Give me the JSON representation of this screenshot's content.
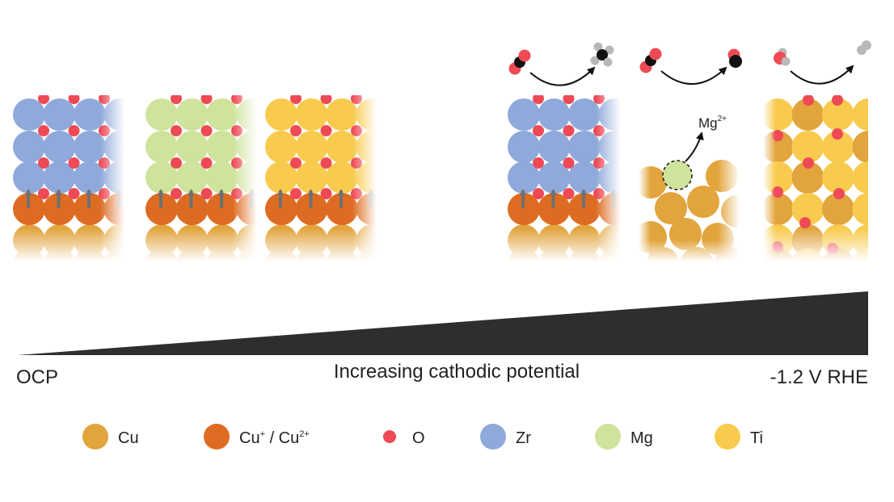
{
  "colors": {
    "cu": "#E2A43C",
    "cu_ox": "#DD6C22",
    "o": "#EE4A55",
    "zr": "#8FA9DB",
    "mg": "#CEE39B",
    "ti": "#F8CB4E",
    "arrow": "#707070",
    "wedge": "#2e2e2e",
    "carbon": "#111111",
    "hydrogen": "#b8b8b8"
  },
  "axis": {
    "left_label": "OCP",
    "center_label": "Increasing cathodic potential",
    "right_label": "-1.2 V RHE"
  },
  "mg_release": {
    "ion": "Mg",
    "charge": "2+"
  },
  "legend": [
    {
      "key": "cu",
      "label": "Cu",
      "icon": "copper-atom"
    },
    {
      "key": "cu_ox",
      "label_main": "Cu",
      "sup1": "+",
      "label_mid": " / Cu",
      "sup2": "2+",
      "icon": "oxidized-copper-atom"
    },
    {
      "key": "o",
      "label": "O",
      "icon": "oxygen-atom"
    },
    {
      "key": "zr",
      "label": "Zr",
      "icon": "zirconium-atom"
    },
    {
      "key": "mg",
      "label": "Mg",
      "icon": "magnesium-atom"
    },
    {
      "key": "ti",
      "label": "Ti",
      "icon": "titanium-atom"
    }
  ],
  "panels_ocp": [
    {
      "name": "cu-zr-oxide-panel",
      "overlayer": "zr"
    },
    {
      "name": "cu-mg-oxide-panel",
      "overlayer": "mg"
    },
    {
      "name": "cu-ti-oxide-panel",
      "overlayer": "ti"
    }
  ],
  "panels_cathodic": [
    {
      "name": "cu-zr-reduced-panel",
      "overlayer": "zr",
      "product": "methane"
    },
    {
      "name": "cu-mg-reduced-panel",
      "overlayer": "mg",
      "product": "carbon-monoxide"
    },
    {
      "name": "cu-ti-reduced-panel",
      "overlayer": "ti",
      "product": "hydrogen"
    }
  ]
}
